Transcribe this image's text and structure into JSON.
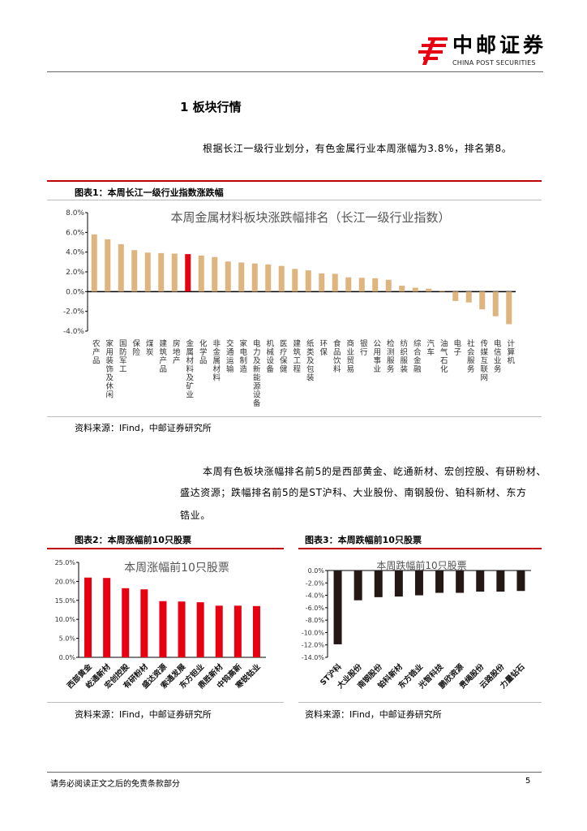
{
  "header": {
    "logo_cn": "中邮证券",
    "logo_en": "CHINA POST SECURITIES"
  },
  "section": {
    "title": "1  板块行情"
  },
  "para1": "根据长江一级行业划分，有色金属行业本周涨幅为3.8%，排名第8。",
  "fig1": {
    "label": "图表1：本周长江一级行业指数涨跌幅",
    "source": "资料来源：IFind，中邮证券研究所"
  },
  "para2_line1": "本周有色板块涨幅排名前5的是西部黄金、屹通新材、宏创控股、有研粉材、",
  "para2_line2": "盛达资源；跌幅排名前5的是ST沪科、大业股份、南钢股份、铂科新材、东方",
  "para2_line3": "锆业。",
  "fig2": {
    "label": "图表2：本周涨幅前10只股票",
    "source": "资料来源：IFind，中邮证券研究所"
  },
  "fig3": {
    "label": "图表3：本周跌幅前10只股票",
    "source": "资料来源：IFind，中邮证券研究所"
  },
  "footer": {
    "disclaimer": "请务必阅读正文之后的免责条款部分",
    "page": "5"
  },
  "colors": {
    "highlight": "#e60012",
    "bar": "#deb57f",
    "up": "#e60012",
    "down": "#231815"
  },
  "chart_data": [
    {
      "type": "bar",
      "title": "本周金属材料板块涨跌幅排名（长江一级行业指数）",
      "ylim": [
        -4,
        8
      ],
      "yticks": [
        "-4.0%",
        "-2.0%",
        "0.0%",
        "2.0%",
        "4.0%",
        "6.0%",
        "8.0%"
      ],
      "highlight": "金属材料及矿业",
      "categories": [
        "农产品",
        "家用装饰及休闲",
        "国防军工",
        "保险",
        "煤炭",
        "建筑产品",
        "房地产",
        "金属材料及矿业",
        "化学品",
        "非金属材料",
        "交通运输",
        "家电制造",
        "电力及新能源设备",
        "机械设备",
        "医疗保健",
        "建筑工程",
        "纸类及包装",
        "环保",
        "食品饮料",
        "商业贸易",
        "银行",
        "公用事业",
        "检测服务",
        "纺织服装",
        "综合金融",
        "汽车",
        "油气石化",
        "电子",
        "社会服务",
        "传媒互联网",
        "电信业务",
        "计算机"
      ],
      "values": [
        5.8,
        5.3,
        4.8,
        4.2,
        3.95,
        3.9,
        3.85,
        3.8,
        3.65,
        3.5,
        3.05,
        2.95,
        2.85,
        2.75,
        2.6,
        2.3,
        2.15,
        1.85,
        1.8,
        1.45,
        1.4,
        1.35,
        1.2,
        0.6,
        0.4,
        0.3,
        0.1,
        -0.95,
        -1.1,
        -1.8,
        -2.5,
        -3.3
      ]
    },
    {
      "type": "bar",
      "title": "本周涨幅前10只股票",
      "ylim": [
        0,
        25
      ],
      "yticks": [
        "0.0%",
        "5.0%",
        "10.0%",
        "15.0%",
        "20.0%",
        "25.0%"
      ],
      "categories": [
        "西部黄金",
        "屹通新材",
        "宏创控股",
        "有研粉材",
        "盛达资源",
        "索通发展",
        "东方钽业",
        "鼎胜新材",
        "中钨高新",
        "寒锐钴业"
      ],
      "values": [
        21.0,
        20.9,
        18.2,
        17.9,
        14.8,
        14.7,
        14.5,
        13.6,
        13.6,
        13.5
      ]
    },
    {
      "type": "bar",
      "title": "本周跌幅前10只股票",
      "ylim": [
        -14,
        0
      ],
      "yticks": [
        "-14.0%",
        "-12.0%",
        "-10.0%",
        "-8.0%",
        "-6.0%",
        "-4.0%",
        "-2.0%",
        "0.0%"
      ],
      "categories": [
        "ST沪科",
        "大业股份",
        "南钢股份",
        "铂科新材",
        "东方锆业",
        "光智科技",
        "鹏欣资源",
        "贵绳股份",
        "云路股份",
        "力量钻石"
      ],
      "values": [
        -11.9,
        -4.8,
        -4.3,
        -4.2,
        -4.0,
        -3.6,
        -3.6,
        -3.4,
        -3.4,
        -3.3
      ]
    }
  ]
}
